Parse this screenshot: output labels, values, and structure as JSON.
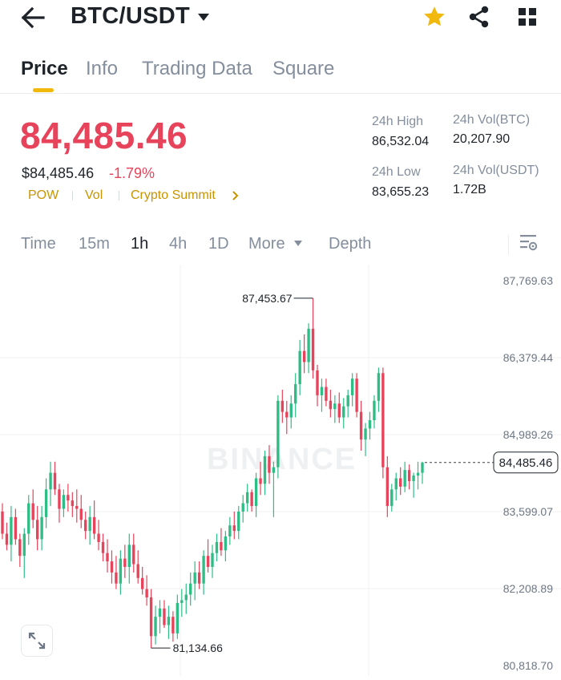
{
  "header": {
    "pair": "BTC/USDT",
    "back_icon": "arrow-left-icon",
    "favorite_icon": "star-icon",
    "share_icon": "share-icon",
    "menu_icon": "grid-icon",
    "favorite_color": "#f0b90b"
  },
  "tabs": [
    {
      "label": "Price",
      "active": true
    },
    {
      "label": "Info"
    },
    {
      "label": "Trading Data"
    },
    {
      "label": "Square"
    }
  ],
  "price": {
    "last": "84,485.46",
    "usd": "$84,485.46",
    "change": "-1.79%",
    "color": "#e7435b"
  },
  "tags": [
    "POW",
    "Vol",
    "Crypto Summit"
  ],
  "stats": {
    "high_label": "24h High",
    "high_value": "86,532.04",
    "low_label": "24h Low",
    "low_value": "83,655.23",
    "vol_btc_label": "24h Vol(BTC)",
    "vol_btc_value": "20,207.90",
    "vol_usdt_label": "24h Vol(USDT)",
    "vol_usdt_value": "1.72B"
  },
  "timeframes": {
    "items": [
      "Time",
      "15m",
      "1h",
      "4h",
      "1D",
      "More",
      "Depth"
    ],
    "active": "1h"
  },
  "chart_data": {
    "type": "candlestick",
    "watermark": "BINANCE",
    "y_ticks": [
      "87,769.63",
      "86,379.44",
      "84,989.26",
      "83,599.07",
      "82,208.89",
      "80,818.70"
    ],
    "ylim": [
      80818.7,
      87769.63
    ],
    "max_label": "87,453.67",
    "min_label": "81,134.66",
    "current": "84,485.46",
    "current_value": 84485.46,
    "up_color": "#2ebd85",
    "down_color": "#e7435b",
    "candles": [
      [
        83600,
        83750,
        83100,
        83200
      ],
      [
        83200,
        83400,
        82900,
        83000
      ],
      [
        83000,
        83700,
        82700,
        83500
      ],
      [
        83500,
        83650,
        83000,
        83100
      ],
      [
        83100,
        83200,
        82600,
        82800
      ],
      [
        82800,
        83300,
        82400,
        83200
      ],
      [
        83200,
        83900,
        83000,
        83750
      ],
      [
        83750,
        84000,
        83300,
        83450
      ],
      [
        83450,
        83700,
        82900,
        83100
      ],
      [
        83100,
        83700,
        82900,
        83500
      ],
      [
        83500,
        84200,
        83300,
        84000
      ],
      [
        84000,
        84500,
        83700,
        84300
      ],
      [
        84300,
        84500,
        83900,
        84000
      ],
      [
        84000,
        84100,
        83400,
        83650
      ],
      [
        83650,
        84000,
        83500,
        83900
      ],
      [
        83900,
        84100,
        83600,
        83800
      ],
      [
        83800,
        83950,
        83500,
        83700
      ],
      [
        83700,
        84000,
        83400,
        83650
      ],
      [
        83650,
        83900,
        83300,
        83450
      ],
      [
        83450,
        83600,
        83100,
        83250
      ],
      [
        83250,
        83700,
        83000,
        83500
      ],
      [
        83500,
        83800,
        83100,
        83200
      ],
      [
        83200,
        83450,
        82900,
        83050
      ],
      [
        83050,
        83200,
        82700,
        82850
      ],
      [
        82850,
        83100,
        82500,
        82700
      ],
      [
        82700,
        82900,
        82300,
        82500
      ],
      [
        82500,
        82800,
        82200,
        82300
      ],
      [
        82300,
        82900,
        82100,
        82750
      ],
      [
        82750,
        83000,
        82400,
        82600
      ],
      [
        82600,
        83200,
        82300,
        83000
      ],
      [
        83000,
        83200,
        82500,
        82650
      ],
      [
        82650,
        82900,
        82300,
        82400
      ],
      [
        82400,
        82600,
        82100,
        82200
      ],
      [
        82200,
        82450,
        81900,
        82050
      ],
      [
        82050,
        82200,
        81134.66,
        81350
      ],
      [
        81350,
        81900,
        81200,
        81700
      ],
      [
        81700,
        82000,
        81400,
        81850
      ],
      [
        81850,
        82000,
        81500,
        81550
      ],
      [
        81550,
        81900,
        81300,
        81700
      ],
      [
        81700,
        81800,
        81250,
        81400
      ],
      [
        81400,
        82100,
        81300,
        81950
      ],
      [
        81950,
        82200,
        81700,
        82000
      ],
      [
        82000,
        82300,
        81750,
        82100
      ],
      [
        82100,
        82500,
        81900,
        82300
      ],
      [
        82300,
        82700,
        82000,
        82500
      ],
      [
        82500,
        82700,
        82200,
        82300
      ],
      [
        82300,
        82900,
        82100,
        82800
      ],
      [
        82800,
        83100,
        82500,
        82600
      ],
      [
        82600,
        83000,
        82400,
        82850
      ],
      [
        82850,
        83200,
        82700,
        83050
      ],
      [
        83050,
        83300,
        82800,
        82900
      ],
      [
        82900,
        83250,
        82700,
        83150
      ],
      [
        83150,
        83500,
        83000,
        83350
      ],
      [
        83350,
        83600,
        83100,
        83250
      ],
      [
        83250,
        83700,
        83100,
        83600
      ],
      [
        83600,
        83900,
        83400,
        83750
      ],
      [
        83750,
        84100,
        83600,
        83950
      ],
      [
        83950,
        84000,
        83600,
        83700
      ],
      [
        83700,
        84300,
        83500,
        84200
      ],
      [
        84200,
        84500,
        83900,
        84100
      ],
      [
        84100,
        84700,
        83900,
        84600
      ],
      [
        84600,
        84800,
        84100,
        84300
      ],
      [
        84300,
        84500,
        83500,
        84400
      ],
      [
        84400,
        85700,
        84200,
        85600
      ],
      [
        85600,
        85800,
        85200,
        85400
      ],
      [
        85400,
        85600,
        85000,
        85300
      ],
      [
        85300,
        85700,
        85100,
        85550
      ],
      [
        85550,
        86100,
        85300,
        85900
      ],
      [
        85900,
        86700,
        85700,
        86500
      ],
      [
        86500,
        86800,
        86100,
        86300
      ],
      [
        86300,
        87000,
        86100,
        86900
      ],
      [
        86900,
        87453.67,
        86000,
        86150
      ],
      [
        86150,
        86250,
        85500,
        85700
      ],
      [
        85700,
        86000,
        85400,
        85850
      ],
      [
        85850,
        86000,
        85500,
        85600
      ],
      [
        85600,
        85800,
        85300,
        85450
      ],
      [
        85450,
        85700,
        85200,
        85550
      ],
      [
        85550,
        85750,
        85200,
        85300
      ],
      [
        85300,
        85650,
        85100,
        85500
      ],
      [
        85500,
        85800,
        85300,
        85700
      ],
      [
        85700,
        86100,
        85500,
        86000
      ],
      [
        86000,
        86100,
        85300,
        85400
      ],
      [
        85400,
        85600,
        84700,
        84900
      ],
      [
        84900,
        85200,
        84600,
        85100
      ],
      [
        85100,
        85400,
        84900,
        85250
      ],
      [
        85250,
        85700,
        85100,
        85600
      ],
      [
        85600,
        86200,
        85400,
        86100
      ],
      [
        86100,
        86200,
        84200,
        84400
      ],
      [
        84400,
        84600,
        83500,
        83700
      ],
      [
        83700,
        84100,
        83600,
        84000
      ],
      [
        84000,
        84300,
        83800,
        84200
      ],
      [
        84200,
        84400,
        83900,
        84050
      ],
      [
        84050,
        84500,
        83950,
        84350
      ],
      [
        84350,
        84450,
        84000,
        84150
      ],
      [
        84150,
        84300,
        83850,
        84250
      ],
      [
        84250,
        84500,
        84000,
        84300
      ],
      [
        84300,
        84500,
        84100,
        84485.46
      ]
    ]
  }
}
